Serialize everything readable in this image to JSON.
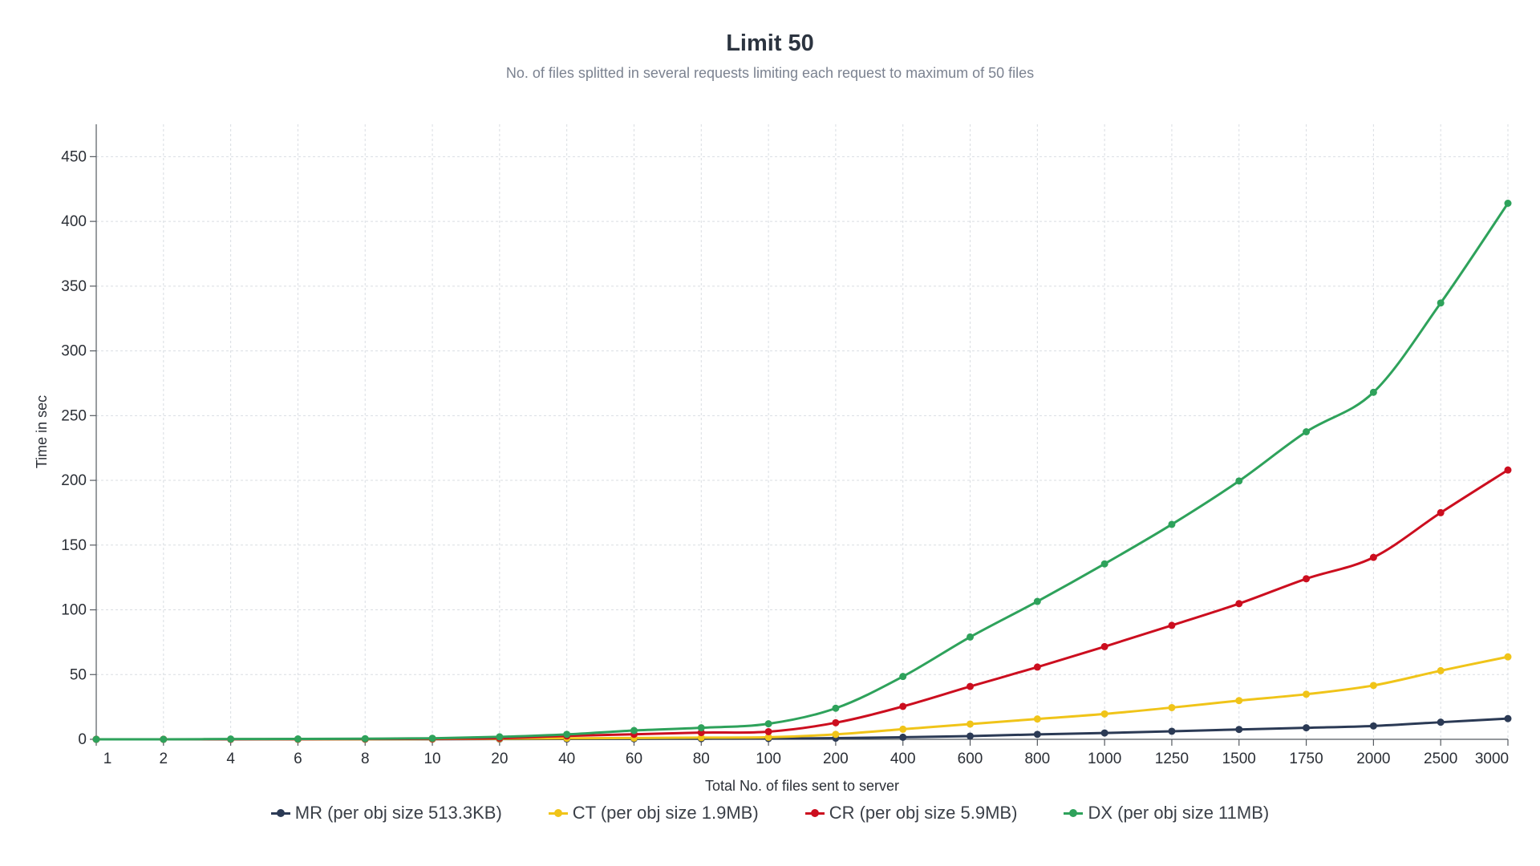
{
  "chart_data": {
    "type": "line",
    "title": "Limit 50",
    "subtitle": "No. of files splitted in several requests limiting each request to maximum of 50 files",
    "xlabel": "Total No. of files sent to server",
    "ylabel": "Time in sec",
    "ylim": [
      0,
      475
    ],
    "yticks": [
      0,
      50,
      100,
      150,
      200,
      250,
      300,
      350,
      400,
      450
    ],
    "grid": true,
    "legend_position": "bottom",
    "categories": [
      "1",
      "2",
      "4",
      "6",
      "8",
      "10",
      "20",
      "40",
      "60",
      "80",
      "100",
      "200",
      "400",
      "600",
      "800",
      "1000",
      "1250",
      "1500",
      "1750",
      "2000",
      "2500",
      "3000"
    ],
    "series": [
      {
        "name": "MR (per obj size 513.3KB)",
        "color": "#2b3a55",
        "values": [
          0,
          0,
          0,
          0,
          0.1,
          0.1,
          0.2,
          0.3,
          0.4,
          0.5,
          0.6,
          0.9,
          1.6,
          2.5,
          3.8,
          4.9,
          6.2,
          7.6,
          8.9,
          10.3,
          13.2,
          16
        ]
      },
      {
        "name": "CT (per obj size 1.9MB)",
        "color": "#f0c419",
        "values": [
          0,
          0,
          0,
          0,
          0.1,
          0.2,
          0.5,
          0.8,
          1,
          1.3,
          1.6,
          3.8,
          7.8,
          11.8,
          15.7,
          19.6,
          24.5,
          29.9,
          34.8,
          41.6,
          53,
          63.7
        ]
      },
      {
        "name": "CR (per obj size 5.9MB)",
        "color": "#cc0e1f",
        "values": [
          0,
          0,
          0,
          0.1,
          0.2,
          0.4,
          0.9,
          2.6,
          3.9,
          5.2,
          5.9,
          12.8,
          25.4,
          40.8,
          55.8,
          71.6,
          88,
          104.8,
          124,
          140.5,
          175,
          208
        ]
      },
      {
        "name": "DX (per obj size 11MB)",
        "color": "#2ea25b",
        "values": [
          0,
          0,
          0.2,
          0.3,
          0.5,
          0.8,
          1.9,
          3.8,
          6.8,
          8.9,
          12,
          24,
          48.5,
          79,
          106.5,
          135.5,
          166,
          199.5,
          237.5,
          268,
          337,
          414
        ]
      }
    ]
  }
}
